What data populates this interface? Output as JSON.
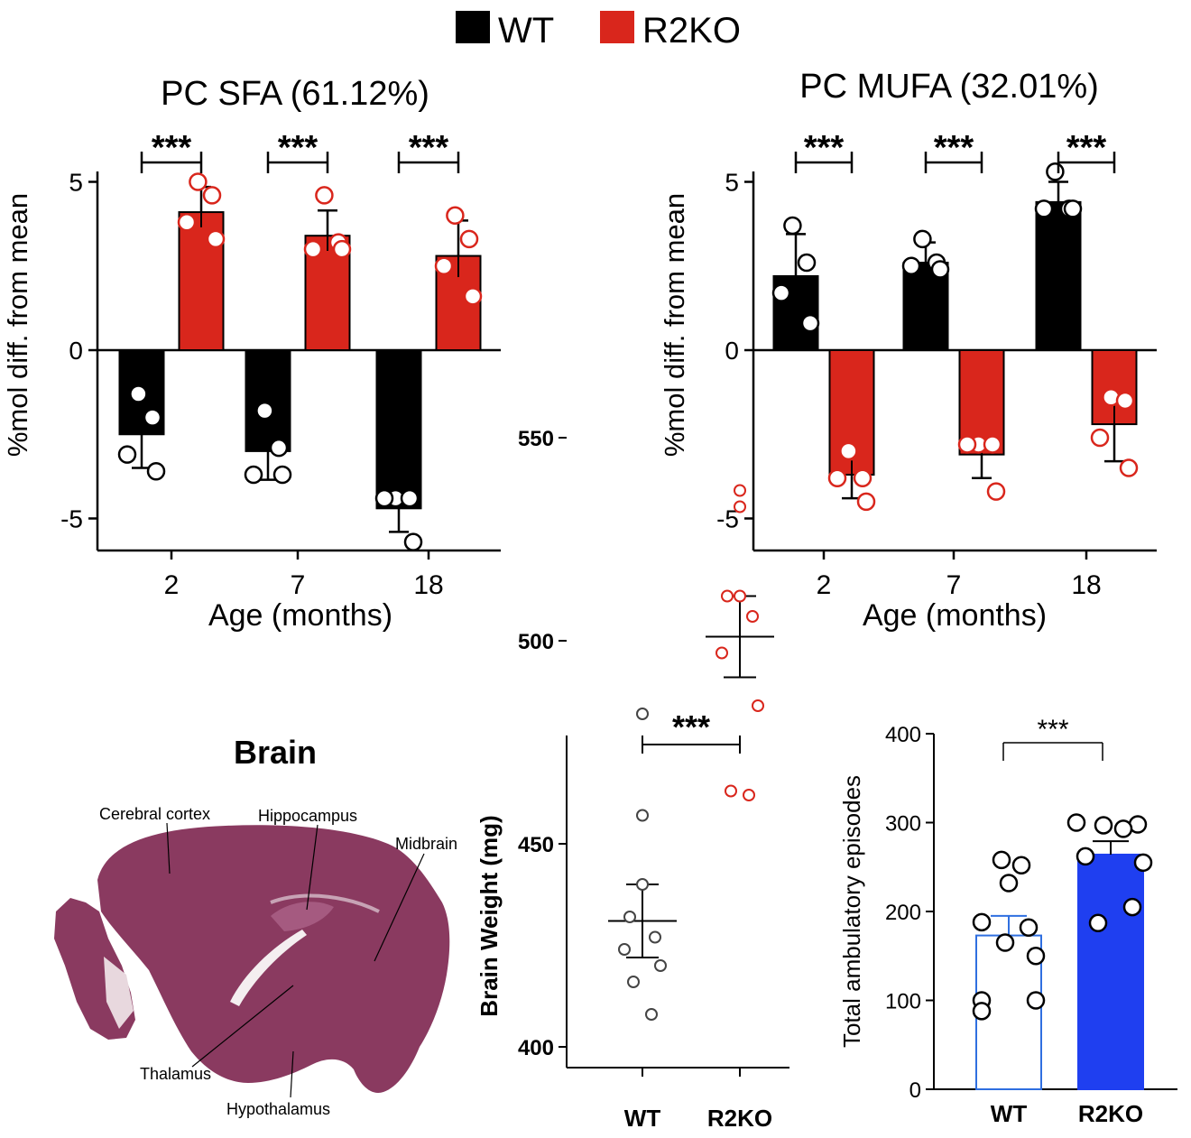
{
  "legend": {
    "items": [
      {
        "label": "WT",
        "color": "#000000"
      },
      {
        "label": "R2KO",
        "color": "#d9261c"
      }
    ]
  },
  "colors": {
    "wt": "#000000",
    "r2ko": "#d9261c",
    "blue": "#1f3ff0",
    "blue_outline": "#2f6fe0",
    "tissue": "#8a3a60"
  },
  "brain": {
    "title": "Brain",
    "labels": {
      "cortex": "Cerebral cortex",
      "hippocampus": "Hippocampus",
      "midbrain": "Midbrain",
      "thalamus": "Thalamus",
      "hypothalamus": "Hypothalamus"
    }
  },
  "chart_data": [
    {
      "type": "bar",
      "title": "PC SFA (61.12%)",
      "xlabel": "Age (months)",
      "ylabel": "%mol diff. from mean",
      "ylim": [
        -6,
        6
      ],
      "yticks": [
        "5",
        "0",
        "-5"
      ],
      "ytick_values": [
        5,
        0,
        -5
      ],
      "categories": [
        "2",
        "7",
        "18"
      ],
      "series": [
        {
          "name": "WT",
          "values": [
            -2.5,
            -3.0,
            -4.7
          ],
          "err": [
            1.0,
            0.85,
            0.7
          ],
          "points": [
            [
              -1.3,
              -2.0,
              -3.1,
              -3.6
            ],
            [
              -1.8,
              -2.9,
              -3.7,
              -3.7
            ],
            [
              -4.4,
              -4.4,
              -4.4,
              -5.7
            ]
          ]
        },
        {
          "name": "R2KO",
          "values": [
            4.1,
            3.4,
            2.8
          ],
          "err": [
            0.75,
            0.75,
            1.05
          ],
          "points": [
            [
              5.0,
              4.6,
              3.8,
              3.3
            ],
            [
              4.6,
              3.2,
              3.0,
              3.0
            ],
            [
              4.0,
              3.3,
              2.5,
              1.6
            ]
          ]
        }
      ],
      "significance": [
        "***",
        "***",
        "***"
      ]
    },
    {
      "type": "bar",
      "title": "PC MUFA (32.01%)",
      "xlabel": "Age (months)",
      "ylabel": "%mol diff. from mean",
      "ylim": [
        -6,
        6
      ],
      "yticks": [
        "5",
        "0",
        "-5"
      ],
      "ytick_values": [
        5,
        0,
        -5
      ],
      "categories": [
        "2",
        "7",
        "18"
      ],
      "series": [
        {
          "name": "WT",
          "values": [
            2.2,
            2.6,
            4.4
          ],
          "err": [
            1.25,
            0.6,
            0.6
          ],
          "points": [
            [
              3.7,
              2.6,
              1.7,
              0.8
            ],
            [
              3.3,
              2.6,
              2.5,
              2.4
            ],
            [
              5.3,
              4.2,
              4.2,
              4.2
            ]
          ]
        },
        {
          "name": "R2KO",
          "values": [
            -3.7,
            -3.1,
            -2.2
          ],
          "err": [
            0.7,
            0.7,
            1.1
          ],
          "points": [
            [
              -3.0,
              -3.8,
              -3.8,
              -4.5
            ],
            [
              -2.8,
              -2.8,
              -2.8,
              -4.2
            ],
            [
              -1.4,
              -1.5,
              -2.6,
              -3.5
            ]
          ]
        }
      ],
      "significance": [
        "***",
        "***",
        "***"
      ]
    },
    {
      "type": "scatter",
      "title": "",
      "xlabel": "",
      "ylabel": "Brain Weight (mg)",
      "ylim": [
        392,
        554
      ],
      "yticks": [
        "550",
        "500",
        "450",
        "400"
      ],
      "ytick_values": [
        550,
        500,
        450,
        400
      ],
      "categories": [
        "WT",
        "R2KO"
      ],
      "series": [
        {
          "name": "WT",
          "mean": 431,
          "sem": 9,
          "points": [
            482,
            457,
            440,
            432,
            427,
            424,
            420,
            416,
            408
          ]
        },
        {
          "name": "R2KO",
          "mean": 501,
          "sem": 10,
          "points": [
            537,
            533,
            511,
            511,
            506,
            497,
            484,
            463,
            462
          ]
        }
      ],
      "significance": "***"
    },
    {
      "type": "bar",
      "title": "",
      "xlabel": "",
      "ylabel": "Total ambulatory episodes",
      "ylim": [
        0,
        400
      ],
      "yticks": [
        "400",
        "300",
        "200",
        "100",
        "0"
      ],
      "ytick_values": [
        400,
        300,
        200,
        100,
        0
      ],
      "categories": [
        "WT",
        "R2KO"
      ],
      "series": [
        {
          "name": "WT",
          "value": 173,
          "err": 22,
          "points": [
            258,
            252,
            232,
            188,
            182,
            165,
            150,
            100,
            100,
            88
          ]
        },
        {
          "name": "R2KO",
          "value": 264,
          "err": 15,
          "points": [
            300,
            298,
            297,
            293,
            262,
            255,
            205,
            187
          ]
        }
      ],
      "significance": "***"
    }
  ]
}
